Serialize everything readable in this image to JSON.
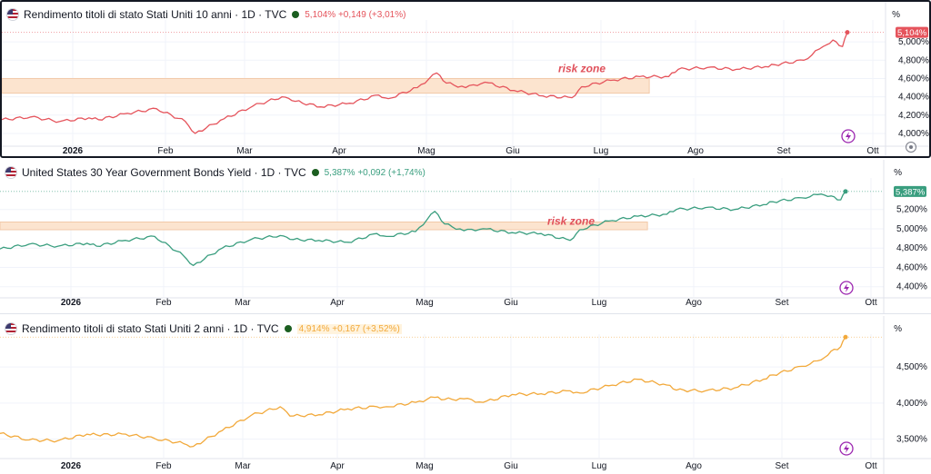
{
  "colors": {
    "red": "#e5545c",
    "green": "#3a9e7f",
    "orange": "#f2a93b",
    "risk_fill": "#fce4cf",
    "grid": "#f0f3fa"
  },
  "icons": {
    "flash": "lightning-bolt-icon",
    "flag": "us-flag-icon",
    "settings": "gear-icon"
  },
  "months": [
    "2026",
    "Feb",
    "Mar",
    "Apr",
    "Mag",
    "Giu",
    "Lug",
    "Ago",
    "Set",
    "Ott"
  ],
  "panels": [
    {
      "title": "Rendimento titoli di stato Stati Uniti 10 anni · 1D · TVC",
      "header_values": "5,104% +0,149 (+3,01%)",
      "unit": "%",
      "last_tag": "5,104%",
      "risk_label": "risk zone",
      "y_labels": [
        "5,000%",
        "4,800%",
        "4,600%",
        "4,400%",
        "4,200%",
        "4,000%"
      ]
    },
    {
      "title": "United States 30 Year Government Bonds Yield · 1D · TVC",
      "header_values": "5,387% +0,092 (+1,74%)",
      "unit": "%",
      "last_tag": "5,387%",
      "risk_label": "risk zone",
      "y_labels": [
        "5,200%",
        "5,000%",
        "4,800%",
        "4,600%",
        "4,400%"
      ]
    },
    {
      "title": "Rendimento titoli di stato Stati Uniti 2 anni · 1D · TVC",
      "header_values": "4,914% +0,167 (+3,52%)",
      "unit": "%",
      "last_tag": "",
      "risk_label": "",
      "y_labels": [
        "4,500%",
        "4,000%",
        "3,500%"
      ]
    }
  ],
  "chart_data": [
    {
      "type": "line",
      "title": "Rendimento titoli di stato Stati Uniti 10 anni",
      "ylim": [
        3.93,
        5.18
      ],
      "y_ticks": [
        5.0,
        4.8,
        4.6,
        4.4,
        4.2,
        4.0
      ],
      "risk_zone": {
        "from_month": 0,
        "to_month": 6.7,
        "y_low": 4.44,
        "y_high": 4.6
      },
      "x": [
        0,
        0.3,
        0.6,
        0.9,
        1.0,
        1.3,
        1.6,
        1.9,
        2.0,
        2.3,
        2.6,
        2.9,
        3.0,
        3.3,
        3.6,
        3.9,
        4.0,
        4.3,
        4.5,
        4.6,
        4.8,
        5.0,
        5.3,
        5.6,
        5.9,
        6.0,
        6.3,
        6.6,
        6.9,
        7.0,
        7.3,
        7.6,
        7.9,
        8.0,
        8.3,
        8.5,
        8.6,
        8.7,
        8.75
      ],
      "y": [
        4.15,
        4.18,
        4.13,
        4.17,
        4.15,
        4.22,
        4.27,
        4.13,
        4.0,
        4.16,
        4.3,
        4.4,
        4.36,
        4.29,
        4.33,
        4.42,
        4.38,
        4.5,
        4.66,
        4.55,
        4.5,
        4.56,
        4.47,
        4.41,
        4.39,
        4.51,
        4.58,
        4.62,
        4.62,
        4.7,
        4.72,
        4.7,
        4.73,
        4.75,
        4.8,
        4.95,
        5.02,
        4.95,
        5.104
      ]
    },
    {
      "type": "line",
      "title": "United States 30 Year Government Bonds Yield",
      "ylim": [
        4.35,
        5.47
      ],
      "y_ticks": [
        5.2,
        5.0,
        4.8,
        4.6,
        4.4
      ],
      "risk_zone": {
        "from_month": 0,
        "to_month": 6.7,
        "y_low": 4.99,
        "y_high": 5.07
      },
      "x": [
        0,
        0.3,
        0.6,
        0.9,
        1.0,
        1.3,
        1.6,
        1.9,
        2.0,
        2.3,
        2.6,
        2.9,
        3.0,
        3.3,
        3.6,
        3.9,
        4.0,
        4.3,
        4.5,
        4.6,
        4.8,
        5.0,
        5.3,
        5.6,
        5.9,
        6.0,
        6.3,
        6.6,
        6.9,
        7.0,
        7.3,
        7.6,
        7.9,
        8.0,
        8.3,
        8.5,
        8.6,
        8.7,
        8.75
      ],
      "y": [
        4.79,
        4.84,
        4.82,
        4.85,
        4.82,
        4.88,
        4.92,
        4.72,
        4.62,
        4.8,
        4.89,
        4.93,
        4.89,
        4.88,
        4.86,
        4.95,
        4.92,
        4.97,
        5.18,
        5.05,
        4.98,
        5.0,
        4.96,
        4.95,
        4.88,
        4.99,
        5.08,
        5.13,
        5.15,
        5.2,
        5.22,
        5.2,
        5.25,
        5.28,
        5.32,
        5.36,
        5.34,
        5.3,
        5.387
      ]
    },
    {
      "type": "line",
      "title": "Rendimento titoli di stato Stati Uniti 2 anni",
      "ylim": [
        3.32,
        4.98
      ],
      "y_ticks": [
        4.5,
        4.0,
        3.5
      ],
      "x": [
        0,
        0.3,
        0.6,
        0.9,
        1.0,
        1.3,
        1.6,
        1.9,
        2.0,
        2.3,
        2.6,
        2.9,
        3.0,
        3.3,
        3.6,
        3.9,
        4.0,
        4.3,
        4.5,
        4.6,
        4.8,
        5.0,
        5.3,
        5.6,
        5.9,
        6.0,
        6.3,
        6.6,
        6.9,
        7.0,
        7.3,
        7.6,
        7.9,
        8.0,
        8.3,
        8.5,
        8.6,
        8.7,
        8.75
      ],
      "y": [
        3.58,
        3.49,
        3.48,
        3.57,
        3.56,
        3.57,
        3.51,
        3.44,
        3.4,
        3.62,
        3.83,
        3.95,
        3.82,
        3.84,
        3.92,
        3.95,
        3.95,
        4.01,
        4.08,
        4.05,
        4.06,
        4.01,
        4.12,
        4.13,
        4.17,
        4.14,
        4.24,
        4.33,
        4.25,
        4.18,
        4.17,
        4.21,
        4.33,
        4.39,
        4.51,
        4.6,
        4.72,
        4.78,
        4.914
      ]
    }
  ]
}
